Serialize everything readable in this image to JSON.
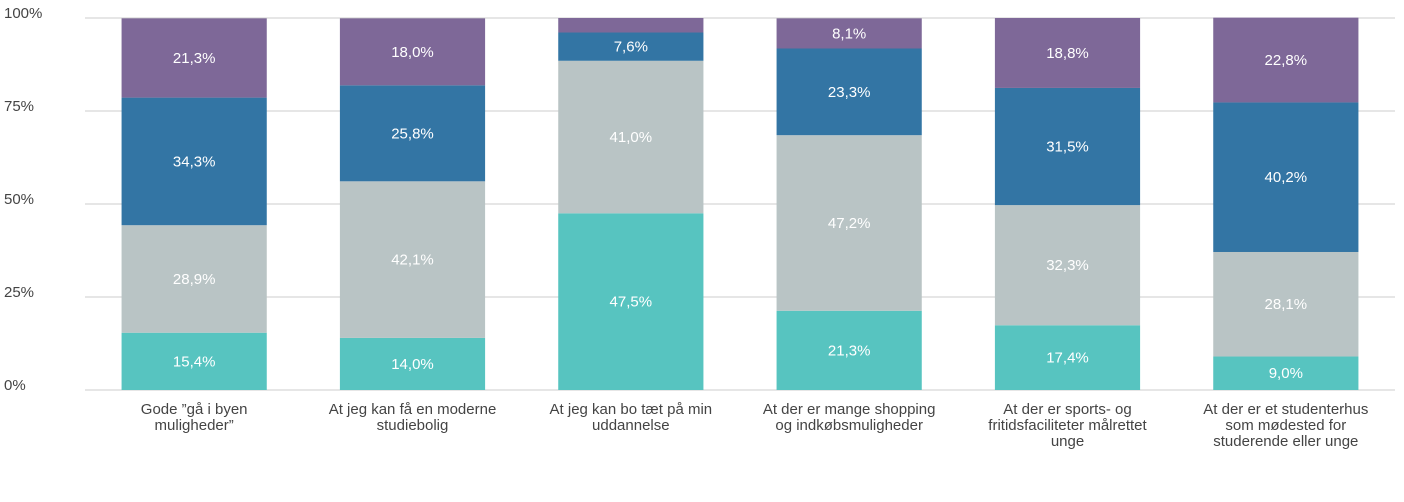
{
  "chart_data": {
    "type": "stacked_bar",
    "categories": [
      "Gode ”gå i byen muligheder”",
      "At jeg kan få en moderne studiebolig",
      "At jeg kan bo tæt på min uddannelse",
      "At der er mange shopping og indkøbsmuligheder",
      "At der er sports- og fritidsfaciliteter målrettet unge",
      "At der er et studenterhus som mødested for studerende eller unge"
    ],
    "series": [
      {
        "color": "#57c4c0",
        "values": [
          15.4,
          14.0,
          47.5,
          21.3,
          17.4,
          9.0
        ],
        "value_labels": [
          "15,4%",
          "14,0%",
          "47,5%",
          "21,3%",
          "17,4%",
          "9,0%"
        ]
      },
      {
        "color": "#b9c4c5",
        "values": [
          28.9,
          42.1,
          41.0,
          47.2,
          32.3,
          28.1
        ],
        "value_labels": [
          "28,9%",
          "42,1%",
          "41,0%",
          "47,2%",
          "32,3%",
          "28,1%"
        ]
      },
      {
        "color": "#3375a4",
        "values": [
          34.3,
          25.8,
          7.6,
          23.3,
          31.5,
          40.2
        ],
        "value_labels": [
          "34,3%",
          "25,8%",
          "7,6%",
          "23,3%",
          "31,5%",
          "40,2%"
        ]
      },
      {
        "color": "#7e6898",
        "values": [
          21.3,
          18.0,
          3.9,
          8.1,
          18.8,
          22.8
        ],
        "value_labels": [
          "21,3%",
          "18,0%",
          null,
          "8,1%",
          "18,8%",
          "22,8%"
        ]
      }
    ],
    "ylim": [
      0,
      100
    ],
    "yticks": [
      {
        "value": 0,
        "label": "0%"
      },
      {
        "value": 25,
        "label": "25%"
      },
      {
        "value": 50,
        "label": "50%"
      },
      {
        "value": 75,
        "label": "75%"
      },
      {
        "value": 100,
        "label": "100%"
      }
    ],
    "grid": true
  }
}
